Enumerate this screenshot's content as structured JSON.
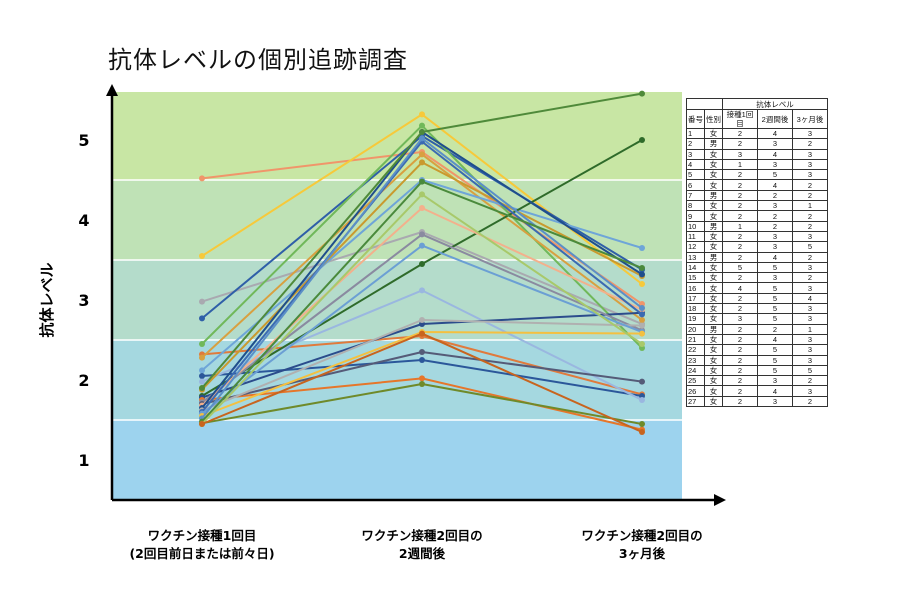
{
  "chart_data": {
    "type": "line",
    "title": "抗体レベルの個別追跡調査",
    "ylabel": "抗体レベル",
    "xlabel": "",
    "ylim": [
      0.5,
      5.6
    ],
    "yticks": [
      "1",
      "2",
      "3",
      "4",
      "5"
    ],
    "ytick_values": [
      1,
      2,
      3,
      4,
      5
    ],
    "categories": [
      [
        "ワクチン接種1回目",
        "(2回目前日または前々日)"
      ],
      [
        "ワクチン接種2回目の",
        "2週間後"
      ],
      [
        "ワクチン接種2回目の",
        "3ヶ月後"
      ]
    ],
    "background_bands": [
      {
        "from": 0.5,
        "to": 1.5,
        "color": "#9dd3ee"
      },
      {
        "from": 1.5,
        "to": 2.5,
        "color": "#a5d8e0"
      },
      {
        "from": 2.5,
        "to": 3.5,
        "color": "#b4dccb"
      },
      {
        "from": 3.5,
        "to": 4.5,
        "color": "#bfe2b6"
      },
      {
        "from": 4.5,
        "to": 5.6,
        "color": "#c8e6a4"
      }
    ],
    "series": [
      {
        "values": [
          4.52,
          4.85,
          2.95
        ],
        "color": "#f0956a"
      },
      {
        "values": [
          3.55,
          5.32,
          3.2
        ],
        "color": "#f7c93a"
      },
      {
        "values": [
          2.98,
          3.85,
          2.7
        ],
        "color": "#a9a9b0"
      },
      {
        "values": [
          2.77,
          5.05,
          3.38
        ],
        "color": "#2f5fa8"
      },
      {
        "values": [
          2.45,
          5.18,
          2.4
        ],
        "color": "#70b85a"
      },
      {
        "values": [
          2.32,
          2.55,
          1.82
        ],
        "color": "#e07a3c"
      },
      {
        "values": [
          2.28,
          4.82,
          2.75
        ],
        "color": "#d8a040"
      },
      {
        "values": [
          2.12,
          4.5,
          3.65
        ],
        "color": "#6ea5d8"
      },
      {
        "values": [
          2.05,
          2.25,
          1.8
        ],
        "color": "#2b579a"
      },
      {
        "values": [
          1.98,
          3.12,
          1.75
        ],
        "color": "#9ab7e0"
      },
      {
        "values": [
          1.88,
          4.72,
          3.3
        ],
        "color": "#c99a2e"
      },
      {
        "values": [
          1.8,
          3.45,
          5.0
        ],
        "color": "#2f6b2a"
      },
      {
        "values": [
          1.78,
          2.7,
          2.84
        ],
        "color": "#2b4c8c"
      },
      {
        "values": [
          1.75,
          2.02,
          1.38
        ],
        "color": "#e6762a"
      },
      {
        "values": [
          1.72,
          3.82,
          2.62
        ],
        "color": "#8a8aa0"
      },
      {
        "values": [
          1.7,
          2.35,
          1.98
        ],
        "color": "#555b78"
      },
      {
        "values": [
          1.68,
          4.15,
          2.88
        ],
        "color": "#f3b08c"
      },
      {
        "values": [
          1.65,
          5.1,
          3.32
        ],
        "color": "#1f4e8c"
      },
      {
        "values": [
          1.62,
          2.75,
          2.68
        ],
        "color": "#b0b0b0"
      },
      {
        "values": [
          1.6,
          4.98,
          2.82
        ],
        "color": "#3b6ab2"
      },
      {
        "values": [
          1.58,
          3.68,
          2.6
        ],
        "color": "#6b9fd4"
      },
      {
        "values": [
          1.55,
          2.6,
          2.58
        ],
        "color": "#f4c040"
      },
      {
        "values": [
          1.52,
          5.02,
          2.9
        ],
        "color": "#5b8fc7"
      },
      {
        "values": [
          1.48,
          4.48,
          3.4
        ],
        "color": "#4a8a3c"
      },
      {
        "values": [
          1.46,
          1.95,
          1.45
        ],
        "color": "#6f8a2a"
      },
      {
        "values": [
          1.45,
          4.32,
          2.45
        ],
        "color": "#a8c96a"
      },
      {
        "values": [
          1.45,
          2.58,
          1.35
        ],
        "color": "#c8641e"
      },
      {
        "values": [
          1.9,
          5.1,
          5.58
        ],
        "color": "#4f8a3a"
      }
    ]
  },
  "table": {
    "group_header": "抗体レベル",
    "headers": [
      "番号",
      "性別",
      "接種1回目",
      "2週間後",
      "3ヶ月後"
    ],
    "rows": [
      [
        "1",
        "女",
        "2",
        "4",
        "3"
      ],
      [
        "2",
        "男",
        "2",
        "3",
        "2"
      ],
      [
        "3",
        "女",
        "3",
        "4",
        "3"
      ],
      [
        "4",
        "女",
        "1",
        "3",
        "3"
      ],
      [
        "5",
        "女",
        "2",
        "5",
        "3"
      ],
      [
        "6",
        "女",
        "2",
        "4",
        "2"
      ],
      [
        "7",
        "男",
        "2",
        "2",
        "2"
      ],
      [
        "8",
        "女",
        "2",
        "3",
        "1"
      ],
      [
        "9",
        "女",
        "2",
        "2",
        "2"
      ],
      [
        "10",
        "男",
        "1",
        "2",
        "2"
      ],
      [
        "11",
        "女",
        "2",
        "3",
        "3"
      ],
      [
        "12",
        "女",
        "2",
        "3",
        "5"
      ],
      [
        "13",
        "男",
        "2",
        "4",
        "2"
      ],
      [
        "14",
        "女",
        "5",
        "5",
        "3"
      ],
      [
        "15",
        "女",
        "2",
        "3",
        "2"
      ],
      [
        "16",
        "女",
        "4",
        "5",
        "3"
      ],
      [
        "17",
        "女",
        "2",
        "5",
        "4"
      ],
      [
        "18",
        "女",
        "2",
        "5",
        "3"
      ],
      [
        "19",
        "女",
        "3",
        "5",
        "3"
      ],
      [
        "20",
        "男",
        "2",
        "2",
        "1"
      ],
      [
        "21",
        "女",
        "2",
        "4",
        "3"
      ],
      [
        "22",
        "女",
        "2",
        "5",
        "3"
      ],
      [
        "23",
        "女",
        "2",
        "5",
        "3"
      ],
      [
        "24",
        "女",
        "2",
        "5",
        "5"
      ],
      [
        "25",
        "女",
        "2",
        "3",
        "2"
      ],
      [
        "26",
        "女",
        "2",
        "4",
        "3"
      ],
      [
        "27",
        "女",
        "2",
        "3",
        "2"
      ]
    ]
  }
}
